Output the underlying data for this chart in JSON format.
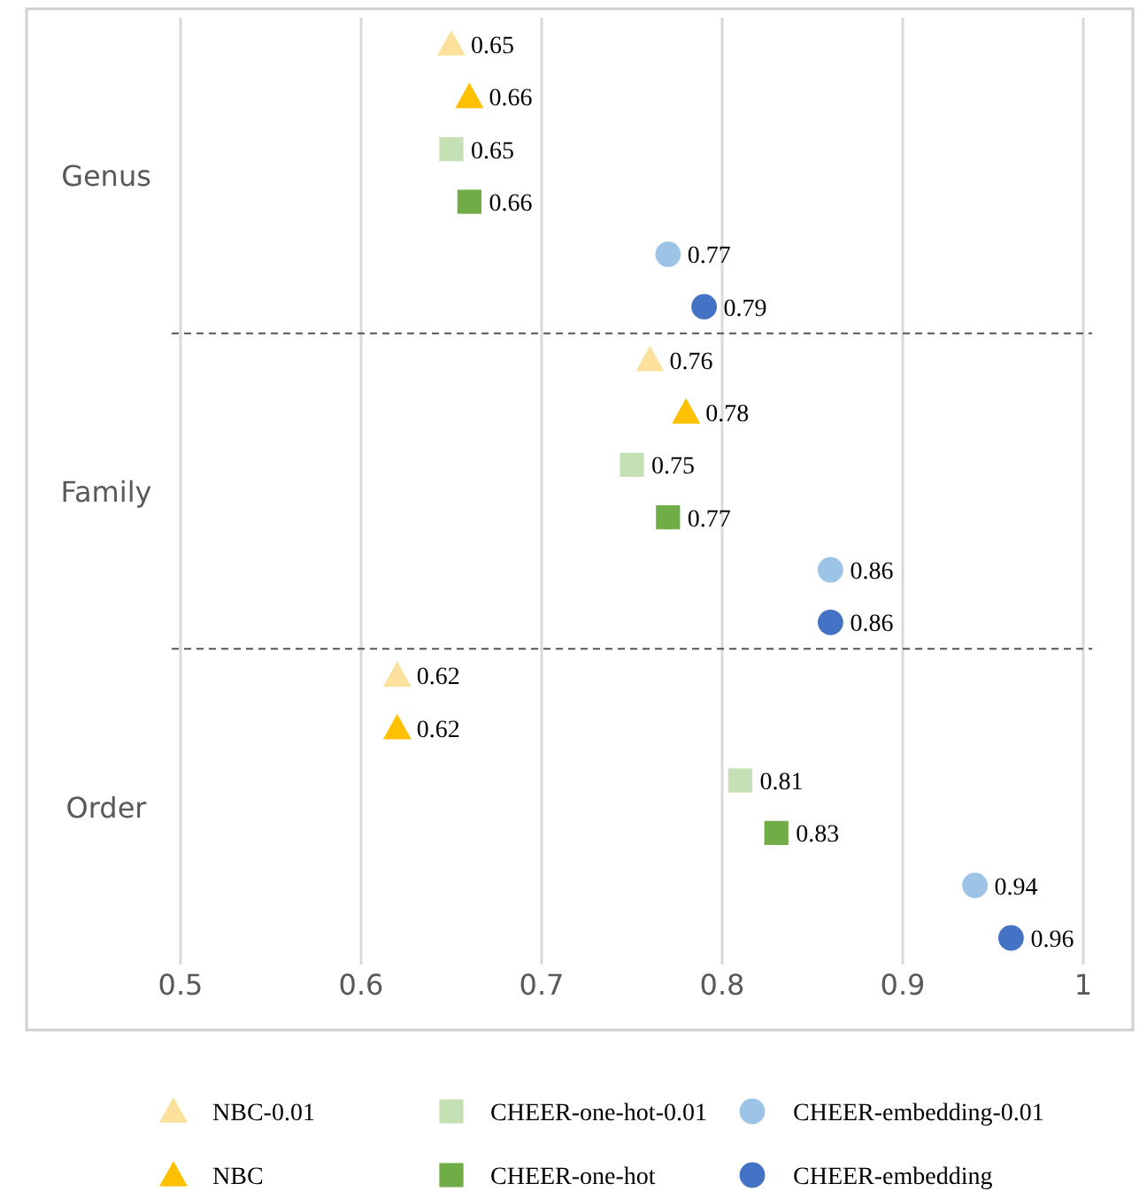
{
  "chart_data": {
    "type": "scatter",
    "orientation": "horizontal",
    "categories": [
      "Genus",
      "Family",
      "Order"
    ],
    "xlim": [
      0.5,
      1
    ],
    "xticks": [
      0.5,
      0.6,
      0.7,
      0.8,
      0.9,
      1
    ],
    "grid": "x",
    "legend": "bottom",
    "data_labels": true,
    "series": [
      {
        "name": "NBC-0.01",
        "color": "#fbe19b",
        "marker": "triangle",
        "values": [
          0.65,
          0.76,
          0.62
        ]
      },
      {
        "name": "NBC",
        "color": "#ffc000",
        "marker": "triangle",
        "values": [
          0.66,
          0.78,
          0.62
        ]
      },
      {
        "name": "CHEER-one-hot-0.01",
        "color": "#c5e0b4",
        "marker": "square",
        "values": [
          0.65,
          0.75,
          0.81
        ]
      },
      {
        "name": "CHEER-one-hot",
        "color": "#70ad47",
        "marker": "square",
        "values": [
          0.66,
          0.77,
          0.83
        ]
      },
      {
        "name": "CHEER-embedding-0.01",
        "color": "#9dc3e6",
        "marker": "circle",
        "values": [
          0.77,
          0.86,
          0.94
        ]
      },
      {
        "name": "CHEER-embedding",
        "color": "#4472c4",
        "marker": "circle",
        "values": [
          0.79,
          0.86,
          0.96
        ]
      }
    ]
  }
}
